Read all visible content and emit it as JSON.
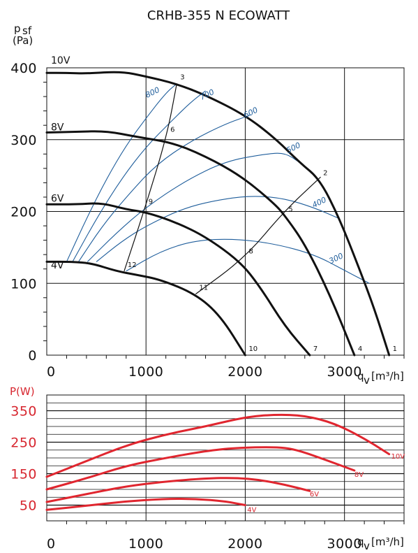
{
  "title": "CRHB-355 N ECOWATT",
  "colors": {
    "fan_curve": "#111111",
    "rpm_curve": "#1e5d9b",
    "power_curve": "#e0262f",
    "power_axis": "#d7262f",
    "grid": "#111111"
  },
  "x_axis": {
    "label": "q",
    "label_subscript": "v",
    "unit": "[m³/h]",
    "ticks": [
      "0",
      "1000",
      "2000",
      "3000"
    ]
  },
  "chart_data": [
    {
      "type": "line",
      "title": "CRHB-355 N ECOWATT",
      "xlabel": "q v [m³/h]",
      "ylabel": "p sf (Pa)",
      "y_axis_label_lines": [
        "p",
        "sf",
        "(Pa)"
      ],
      "xlim": [
        0,
        3600
      ],
      "ylim": [
        0,
        400
      ],
      "x_ticks": [
        0,
        1000,
        2000,
        3000
      ],
      "y_ticks": [
        0,
        100,
        200,
        300,
        400
      ],
      "x_tick_labels": [
        "0",
        "1000",
        "2000",
        "3000"
      ],
      "y_tick_labels": [
        "0",
        "100",
        "200",
        "300",
        "400"
      ],
      "grid": true,
      "series": [
        {
          "name": "10V",
          "label_at": [
            0,
            400
          ],
          "points": [
            [
              0,
              393
            ],
            [
              200,
              393
            ],
            [
              400,
              392
            ],
            [
              750,
              395
            ],
            [
              1000,
              388
            ],
            [
              1300,
              378
            ],
            [
              1600,
              362
            ],
            [
              2000,
              334
            ],
            [
              2300,
              302
            ],
            [
              2550,
              268
            ],
            [
              2750,
              245
            ],
            [
              2950,
              190
            ],
            [
              3150,
              120
            ],
            [
              3300,
              65
            ],
            [
              3450,
              0
            ]
          ]
        },
        {
          "name": "8V",
          "label_at": [
            0,
            307
          ],
          "points": [
            [
              0,
              310
            ],
            [
              300,
              311
            ],
            [
              600,
              312
            ],
            [
              900,
              304
            ],
            [
              1300,
              295
            ],
            [
              1700,
              270
            ],
            [
              2000,
              245
            ],
            [
              2300,
              210
            ],
            [
              2400,
              194
            ],
            [
              2600,
              155
            ],
            [
              2850,
              85
            ],
            [
              3100,
              0
            ]
          ]
        },
        {
          "name": "6V",
          "label_at": [
            0,
            208
          ],
          "points": [
            [
              0,
              210
            ],
            [
              300,
              210
            ],
            [
              550,
              212
            ],
            [
              800,
              203
            ],
            [
              1000,
              199
            ],
            [
              1300,
              185
            ],
            [
              1600,
              165
            ],
            [
              1950,
              130
            ],
            [
              2150,
              95
            ],
            [
              2400,
              40
            ],
            [
              2650,
              0
            ]
          ]
        },
        {
          "name": "4V",
          "label_at": [
            0,
            115
          ],
          "points": [
            [
              0,
              130
            ],
            [
              250,
              130
            ],
            [
              450,
              128
            ],
            [
              700,
              117
            ],
            [
              900,
              112
            ],
            [
              1150,
              105
            ],
            [
              1500,
              85
            ],
            [
              1750,
              55
            ],
            [
              2000,
              0
            ]
          ]
        }
      ],
      "rpm_series": [
        {
          "name": "800",
          "points": [
            [
              200,
              130
            ],
            [
              400,
              190
            ],
            [
              600,
              245
            ],
            [
              800,
              292
            ],
            [
              1000,
              330
            ],
            [
              1200,
              365
            ],
            [
              1310,
              378
            ]
          ]
        },
        {
          "name": "700",
          "points": [
            [
              260,
              130
            ],
            [
              500,
              190
            ],
            [
              750,
              245
            ],
            [
              1000,
              290
            ],
            [
              1250,
              325
            ],
            [
              1450,
              352
            ],
            [
              1600,
              368
            ]
          ]
        },
        {
          "name": "600",
          "points": [
            [
              320,
              130
            ],
            [
              550,
              178
            ],
            [
              800,
              220
            ],
            [
              1100,
              265
            ],
            [
              1450,
              298
            ],
            [
              1800,
              322
            ],
            [
              2050,
              334
            ]
          ]
        },
        {
          "name": "500",
          "points": [
            [
              410,
              130
            ],
            [
              700,
              170
            ],
            [
              1000,
              206
            ],
            [
              1400,
              243
            ],
            [
              1800,
              270
            ],
            [
              2200,
              280
            ],
            [
              2400,
              282
            ],
            [
              2550,
              268
            ]
          ]
        },
        {
          "name": "400",
          "points": [
            [
              500,
              130
            ],
            [
              750,
              158
            ],
            [
              1000,
              180
            ],
            [
              1400,
              206
            ],
            [
              1800,
              218
            ],
            [
              2100,
              222
            ],
            [
              2400,
              218
            ],
            [
              2700,
              205
            ],
            [
              2950,
              190
            ]
          ]
        },
        {
          "name": "300",
          "points": [
            [
              800,
              117
            ],
            [
              1150,
              145
            ],
            [
              1500,
              160
            ],
            [
              1900,
              162
            ],
            [
              2300,
              155
            ],
            [
              2700,
              140
            ],
            [
              3000,
              118
            ],
            [
              3250,
              100
            ]
          ]
        }
      ],
      "rpm_label_positions": [
        [
          1010,
          358
        ],
        [
          1560,
          355
        ],
        [
          2000,
          330
        ],
        [
          2430,
          281
        ],
        [
          2690,
          205
        ],
        [
          2860,
          127
        ]
      ],
      "operating_lines": [
        {
          "points": [
            [
              780,
              117
            ],
            [
              990,
              205
            ],
            [
              1210,
              305
            ],
            [
              1310,
              378
            ]
          ]
        },
        {
          "points": [
            [
              1500,
              85
            ],
            [
              2000,
              136
            ],
            [
              2390,
              200
            ],
            [
              2760,
              248
            ]
          ]
        }
      ],
      "operating_points": [
        {
          "label": "1",
          "x": 3450,
          "y": 0
        },
        {
          "label": "2",
          "x": 2750,
          "y": 245
        },
        {
          "label": "3",
          "x": 1310,
          "y": 378
        },
        {
          "label": "4",
          "x": 3100,
          "y": 0
        },
        {
          "label": "5",
          "x": 2400,
          "y": 194
        },
        {
          "label": "6",
          "x": 1210,
          "y": 305
        },
        {
          "label": "7",
          "x": 2650,
          "y": 0
        },
        {
          "label": "8",
          "x": 2000,
          "y": 136
        },
        {
          "label": "9",
          "x": 990,
          "y": 205
        },
        {
          "label": "10",
          "x": 2000,
          "y": 0
        },
        {
          "label": "11",
          "x": 1500,
          "y": 85
        },
        {
          "label": "12",
          "x": 780,
          "y": 117
        }
      ]
    },
    {
      "type": "line",
      "title": "",
      "xlabel": "q v [m³/h]",
      "ylabel": "P(W)",
      "xlim": [
        0,
        3600
      ],
      "ylim": [
        0,
        400
      ],
      "x_ticks": [
        0,
        1000,
        2000,
        3000
      ],
      "y_ticks": [
        50,
        150,
        250,
        350
      ],
      "x_tick_labels": [
        "0",
        "1000",
        "2000",
        "3000"
      ],
      "y_tick_labels": [
        "50",
        "150",
        "250",
        "350"
      ],
      "grid": true,
      "series": [
        {
          "name": "10V",
          "points": [
            [
              0,
              140
            ],
            [
              400,
              190
            ],
            [
              800,
              240
            ],
            [
              1200,
              275
            ],
            [
              1600,
              300
            ],
            [
              2000,
              330
            ],
            [
              2300,
              338
            ],
            [
              2600,
              335
            ],
            [
              2900,
              310
            ],
            [
              3200,
              262
            ],
            [
              3450,
              212
            ]
          ]
        },
        {
          "name": "8V",
          "points": [
            [
              0,
              100
            ],
            [
              400,
              135
            ],
            [
              800,
              175
            ],
            [
              1200,
              200
            ],
            [
              1600,
              222
            ],
            [
              1900,
              232
            ],
            [
              2300,
              235
            ],
            [
              2500,
              228
            ],
            [
              2800,
              195
            ],
            [
              3100,
              160
            ]
          ]
        },
        {
          "name": "6V",
          "points": [
            [
              0,
              60
            ],
            [
              400,
              85
            ],
            [
              800,
              110
            ],
            [
              1200,
              125
            ],
            [
              1600,
              135
            ],
            [
              1900,
              137
            ],
            [
              2150,
              130
            ],
            [
              2400,
              115
            ],
            [
              2650,
              95
            ]
          ]
        },
        {
          "name": "4V",
          "points": [
            [
              0,
              35
            ],
            [
              400,
              48
            ],
            [
              800,
              62
            ],
            [
              1200,
              70
            ],
            [
              1500,
              70
            ],
            [
              1800,
              62
            ],
            [
              2000,
              50
            ]
          ]
        }
      ],
      "label_positions": [
        [
          3470,
          198
        ],
        [
          3100,
          140
        ],
        [
          2650,
          78
        ],
        [
          2020,
          28
        ]
      ]
    }
  ]
}
